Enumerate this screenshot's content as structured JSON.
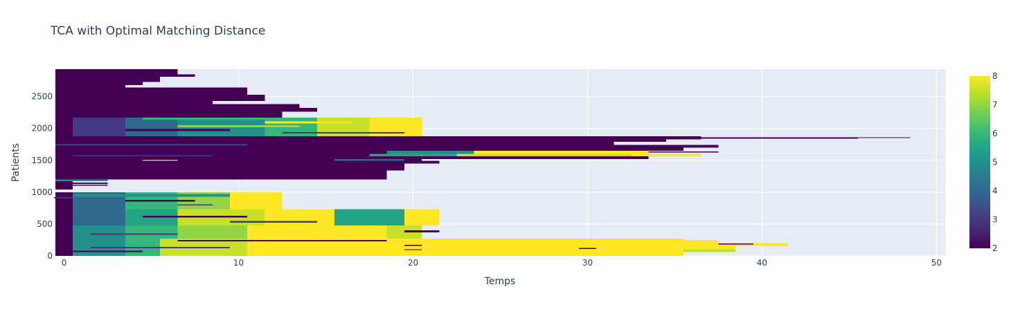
{
  "chart_data": {
    "type": "heatmap",
    "title": "TCA with Optimal Matching Distance",
    "xlabel": "Temps",
    "ylabel": "Patients",
    "xlim": [
      -0.5,
      50.5
    ],
    "ylim": [
      0,
      2930
    ],
    "x_ticks": [
      0,
      10,
      20,
      30,
      40,
      50
    ],
    "y_ticks": [
      0,
      500,
      1000,
      1500,
      2000,
      2500
    ],
    "grid": true,
    "colorscale": {
      "name": "Viridis",
      "min": 2,
      "max": 8,
      "ticks": [
        2,
        3,
        4,
        5,
        6,
        7,
        8
      ],
      "stops": [
        [
          0.0,
          "#440154"
        ],
        [
          0.111,
          "#482878"
        ],
        [
          0.222,
          "#3e4989"
        ],
        [
          0.333,
          "#31688e"
        ],
        [
          0.444,
          "#26828e"
        ],
        [
          0.556,
          "#1f9e89"
        ],
        [
          0.667,
          "#35b779"
        ],
        [
          0.778,
          "#6ece58"
        ],
        [
          0.889,
          "#b5de2b"
        ],
        [
          1.0,
          "#fde725"
        ]
      ]
    },
    "colors": {
      "plot_background": "#e5ecf6",
      "grid": "#ffffff",
      "text": "#2a3f5f"
    },
    "segments": [
      {
        "y": [
          2850,
          2930
        ],
        "x": [
          -0.5,
          6.5
        ],
        "v": 2
      },
      {
        "y": [
          2810,
          2850
        ],
        "x": [
          -0.5,
          7.5
        ],
        "v": 2
      },
      {
        "y": [
          2730,
          2810
        ],
        "x": [
          -0.5,
          5.5
        ],
        "v": 2
      },
      {
        "y": [
          2680,
          2730
        ],
        "x": [
          -0.5,
          4.5
        ],
        "v": 2
      },
      {
        "y": [
          2640,
          2680
        ],
        "x": [
          -0.5,
          3.5
        ],
        "v": 2
      },
      {
        "y": [
          2530,
          2640
        ],
        "x": [
          -0.5,
          10.5
        ],
        "v": 2
      },
      {
        "y": [
          2430,
          2530
        ],
        "x": [
          -0.5,
          11.5
        ],
        "v": 2
      },
      {
        "y": [
          2380,
          2430
        ],
        "x": [
          -0.5,
          8.5
        ],
        "v": 2
      },
      {
        "y": [
          2320,
          2380
        ],
        "x": [
          -0.5,
          13.5
        ],
        "v": 2
      },
      {
        "y": [
          2260,
          2320
        ],
        "x": [
          -0.5,
          14.5
        ],
        "v": 2
      },
      {
        "y": [
          2170,
          2260
        ],
        "x": [
          -0.5,
          12.5
        ],
        "v": 2
      },
      {
        "y": [
          1880,
          2170
        ],
        "x": [
          -0.5,
          0.5
        ],
        "v": 2
      },
      {
        "y": [
          1880,
          2170
        ],
        "x": [
          0.5,
          3.5
        ],
        "v": 3
      },
      {
        "y": [
          1880,
          2170
        ],
        "x": [
          3.5,
          6.5
        ],
        "v": 4
      },
      {
        "y": [
          1880,
          2170
        ],
        "x": [
          6.5,
          11.5
        ],
        "v": 5
      },
      {
        "y": [
          1880,
          2170
        ],
        "x": [
          11.5,
          14.5
        ],
        "v": 6
      },
      {
        "y": [
          1880,
          2170
        ],
        "x": [
          14.5,
          17.5
        ],
        "v": 7.5
      },
      {
        "y": [
          1880,
          2170
        ],
        "x": [
          17.5,
          20.5
        ],
        "v": 8
      },
      {
        "y": [
          2140,
          2170
        ],
        "x": [
          4.5,
          11.5
        ],
        "v": 6
      },
      {
        "y": [
          2080,
          2110
        ],
        "x": [
          11.5,
          16.5
        ],
        "v": 8
      },
      {
        "y": [
          2020,
          2050
        ],
        "x": [
          6.5,
          13.5
        ],
        "v": 7
      },
      {
        "y": [
          1960,
          1990
        ],
        "x": [
          3.5,
          9.5
        ],
        "v": 2
      },
      {
        "y": [
          1920,
          1945
        ],
        "x": [
          12.5,
          19.5
        ],
        "v": 3
      },
      {
        "y": [
          1830,
          1880
        ],
        "x": [
          -0.5,
          36.5
        ],
        "v": 2
      },
      {
        "y": [
          1850,
          1860
        ],
        "x": [
          36.5,
          48.5
        ],
        "v": 2
      },
      {
        "y": [
          1840,
          1850
        ],
        "x": [
          36.5,
          45.5
        ],
        "v": 2
      },
      {
        "y": [
          1790,
          1830
        ],
        "x": [
          -0.5,
          34.5
        ],
        "v": 2
      },
      {
        "y": [
          1740,
          1790
        ],
        "x": [
          -0.5,
          31.5
        ],
        "v": 2
      },
      {
        "y": [
          1700,
          1740
        ],
        "x": [
          -0.5,
          37.5
        ],
        "v": 2
      },
      {
        "y": [
          1650,
          1700
        ],
        "x": [
          -0.5,
          35.5
        ],
        "v": 2
      },
      {
        "y": [
          1600,
          1650
        ],
        "x": [
          -0.5,
          18.5
        ],
        "v": 2
      },
      {
        "y": [
          1600,
          1650
        ],
        "x": [
          18.5,
          23.5
        ],
        "v": 5
      },
      {
        "y": [
          1600,
          1650
        ],
        "x": [
          23.5,
          33.5
        ],
        "v": 8
      },
      {
        "y": [
          1620,
          1640
        ],
        "x": [
          33.5,
          37.5
        ],
        "v": 2
      },
      {
        "y": [
          1560,
          1600
        ],
        "x": [
          -0.5,
          17.5
        ],
        "v": 2
      },
      {
        "y": [
          1560,
          1600
        ],
        "x": [
          17.5,
          22.5
        ],
        "v": 5.5
      },
      {
        "y": [
          1560,
          1600
        ],
        "x": [
          22.5,
          32.5
        ],
        "v": 7.5
      },
      {
        "y": [
          1560,
          1600
        ],
        "x": [
          32.5,
          36.5
        ],
        "v": 8
      },
      {
        "y": [
          1520,
          1560
        ],
        "x": [
          -0.5,
          33.5
        ],
        "v": 2
      },
      {
        "y": [
          1490,
          1520
        ],
        "x": [
          -0.5,
          20.5
        ],
        "v": 2
      },
      {
        "y": [
          1490,
          1520
        ],
        "x": [
          15.5,
          19.5
        ],
        "v": 4
      },
      {
        "y": [
          1450,
          1490
        ],
        "x": [
          -0.5,
          21.5
        ],
        "v": 2
      },
      {
        "y": [
          1400,
          1450
        ],
        "x": [
          -0.5,
          19.5
        ],
        "v": 2
      },
      {
        "y": [
          1340,
          1400
        ],
        "x": [
          -0.5,
          19.5
        ],
        "v": 2
      },
      {
        "y": [
          1290,
          1340
        ],
        "x": [
          -0.5,
          18.5
        ],
        "v": 2
      },
      {
        "y": [
          1200,
          1290
        ],
        "x": [
          -0.5,
          18.5
        ],
        "v": 2
      },
      {
        "y": [
          1730,
          1760
        ],
        "x": [
          -0.5,
          10.5
        ],
        "v": 3
      },
      {
        "y": [
          1560,
          1580
        ],
        "x": [
          0.5,
          8.5
        ],
        "v": 3
      },
      {
        "y": [
          1490,
          1510
        ],
        "x": [
          4.5,
          6.5
        ],
        "v": 7
      },
      {
        "y": [
          1170,
          1200
        ],
        "x": [
          -0.5,
          2.5
        ],
        "v": 5
      },
      {
        "y": [
          1100,
          1170
        ],
        "x": [
          -0.5,
          0.5
        ],
        "v": 2
      },
      {
        "y": [
          1130,
          1150
        ],
        "x": [
          0.5,
          2.5
        ],
        "v": 2
      },
      {
        "y": [
          1100,
          1120
        ],
        "x": [
          0.5,
          2.5
        ],
        "v": 2
      },
      {
        "y": [
          1040,
          1100
        ],
        "x": [
          -0.5,
          0.5
        ],
        "v": 2
      },
      {
        "y": [
          730,
          1000
        ],
        "x": [
          -0.5,
          0.5
        ],
        "v": 2
      },
      {
        "y": [
          730,
          1000
        ],
        "x": [
          0.5,
          3.5
        ],
        "v": 4
      },
      {
        "y": [
          730,
          1000
        ],
        "x": [
          3.5,
          6.5
        ],
        "v": 6
      },
      {
        "y": [
          730,
          1000
        ],
        "x": [
          6.5,
          9.5
        ],
        "v": 7
      },
      {
        "y": [
          730,
          1000
        ],
        "x": [
          9.5,
          12.5
        ],
        "v": 8
      },
      {
        "y": [
          930,
          970
        ],
        "x": [
          0.5,
          9.5
        ],
        "v": 5
      },
      {
        "y": [
          850,
          880
        ],
        "x": [
          3.5,
          7.5
        ],
        "v": 2
      },
      {
        "y": [
          790,
          810
        ],
        "x": [
          6.5,
          8.5
        ],
        "v": 3
      },
      {
        "y": [
          900,
          920
        ],
        "x": [
          -1.0,
          0.5
        ],
        "v": 3
      },
      {
        "y": [
          480,
          730
        ],
        "x": [
          -0.5,
          0.5
        ],
        "v": 2
      },
      {
        "y": [
          480,
          730
        ],
        "x": [
          0.5,
          3.5
        ],
        "v": 4
      },
      {
        "y": [
          480,
          730
        ],
        "x": [
          3.5,
          6.5
        ],
        "v": 5.5
      },
      {
        "y": [
          480,
          730
        ],
        "x": [
          6.5,
          11.5
        ],
        "v": 7.5
      },
      {
        "y": [
          480,
          730
        ],
        "x": [
          11.5,
          15.5
        ],
        "v": 8
      },
      {
        "y": [
          480,
          730
        ],
        "x": [
          15.5,
          19.5
        ],
        "v": 5.5
      },
      {
        "y": [
          480,
          730
        ],
        "x": [
          19.5,
          21.5
        ],
        "v": 8
      },
      {
        "y": [
          600,
          630
        ],
        "x": [
          4.5,
          10.5
        ],
        "v": 2
      },
      {
        "y": [
          520,
          550
        ],
        "x": [
          9.5,
          14.5
        ],
        "v": 3
      },
      {
        "y": [
          270,
          480
        ],
        "x": [
          -0.5,
          0.5
        ],
        "v": 2
      },
      {
        "y": [
          270,
          480
        ],
        "x": [
          0.5,
          3.5
        ],
        "v": 5
      },
      {
        "y": [
          270,
          480
        ],
        "x": [
          3.5,
          6.5
        ],
        "v": 6
      },
      {
        "y": [
          270,
          480
        ],
        "x": [
          6.5,
          10.5
        ],
        "v": 7
      },
      {
        "y": [
          270,
          480
        ],
        "x": [
          10.5,
          18.5
        ],
        "v": 8
      },
      {
        "y": [
          270,
          480
        ],
        "x": [
          18.5,
          20.5
        ],
        "v": 7.5
      },
      {
        "y": [
          370,
          400
        ],
        "x": [
          19.5,
          21.5
        ],
        "v": 2
      },
      {
        "y": [
          330,
          350
        ],
        "x": [
          1.5,
          6.5
        ],
        "v": 3
      },
      {
        "y": [
          0,
          270
        ],
        "x": [
          -0.5,
          0.5
        ],
        "v": 2
      },
      {
        "y": [
          0,
          270
        ],
        "x": [
          0.5,
          3.5
        ],
        "v": 5
      },
      {
        "y": [
          0,
          270
        ],
        "x": [
          3.5,
          5.5
        ],
        "v": 6
      },
      {
        "y": [
          0,
          270
        ],
        "x": [
          5.5,
          10.5
        ],
        "v": 7.5
      },
      {
        "y": [
          0,
          270
        ],
        "x": [
          10.5,
          35.5
        ],
        "v": 8
      },
      {
        "y": [
          200,
          250
        ],
        "x": [
          35.5,
          37.5
        ],
        "v": 8
      },
      {
        "y": [
          160,
          200
        ],
        "x": [
          35.5,
          41.5
        ],
        "v": 8
      },
      {
        "y": [
          110,
          160
        ],
        "x": [
          35.5,
          38.5
        ],
        "v": 8
      },
      {
        "y": [
          0,
          110
        ],
        "x": [
          35.5,
          31.5
        ],
        "v": 8
      },
      {
        "y": [
          60,
          110
        ],
        "x": [
          35.5,
          38.5
        ],
        "v": 7.5
      },
      {
        "y": [
          180,
          195
        ],
        "x": [
          37.5,
          39.5
        ],
        "v": 2
      },
      {
        "y": [
          110,
          125
        ],
        "x": [
          29.5,
          30.5
        ],
        "v": 2
      },
      {
        "y": [
          230,
          250
        ],
        "x": [
          6.5,
          18.5
        ],
        "v": 2
      },
      {
        "y": [
          120,
          140
        ],
        "x": [
          1.5,
          9.5
        ],
        "v": 3
      },
      {
        "y": [
          60,
          80
        ],
        "x": [
          0.5,
          4.5
        ],
        "v": 2
      },
      {
        "y": [
          160,
          175
        ],
        "x": [
          19.5,
          20.5
        ],
        "v": 2
      },
      {
        "y": [
          90,
          105
        ],
        "x": [
          19.5,
          20.5
        ],
        "v": 2
      }
    ]
  }
}
